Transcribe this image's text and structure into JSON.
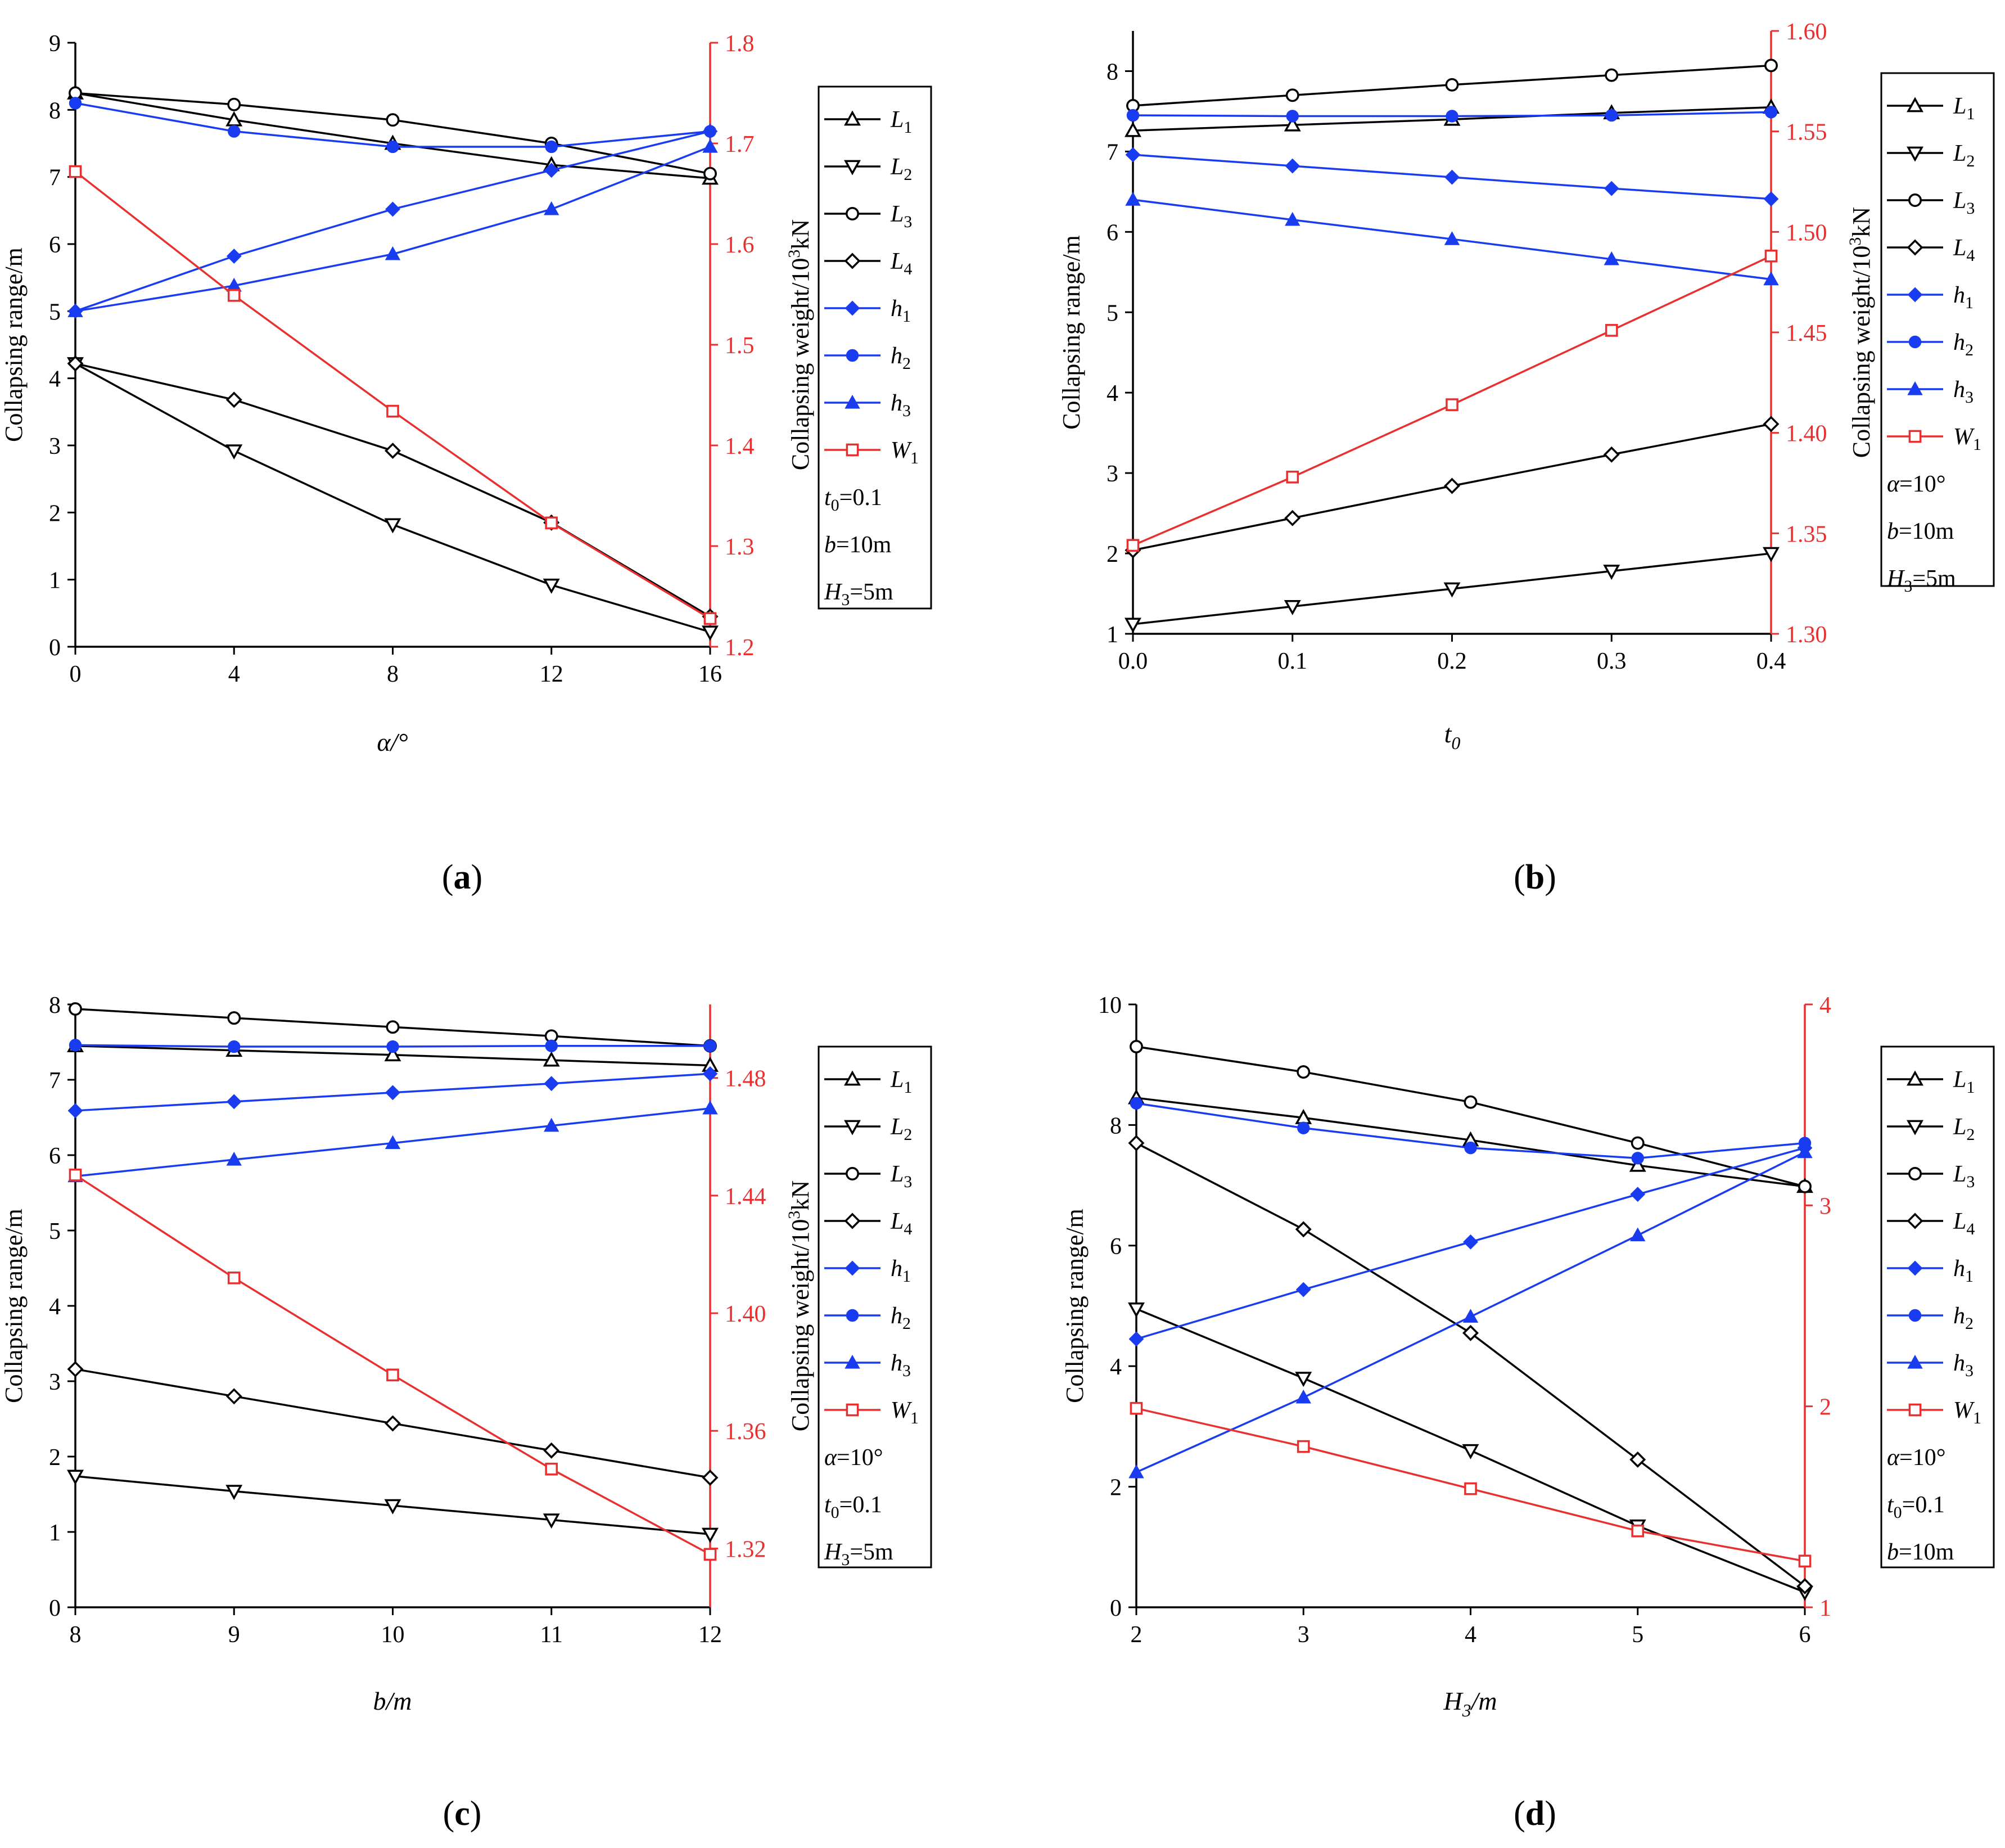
{
  "figure": {
    "left_axis_title": "Collapsing range/m",
    "right_axis_title": "Collapsing weight/10",
    "right_axis_sup": "3",
    "right_axis_suffix": "kN"
  },
  "chart_data": [
    {
      "panel": "(a)",
      "letter": "a",
      "type": "line",
      "xlabel": "α/°",
      "x": [
        0,
        4,
        8,
        12,
        16
      ],
      "x_ticks": [
        "0",
        "4",
        "8",
        "12",
        "16"
      ],
      "xlim": [
        0,
        16
      ],
      "ylabel": "Collapsing range/m",
      "ylim": [
        0,
        9
      ],
      "y_ticks": [
        "0",
        "1",
        "2",
        "3",
        "4",
        "5",
        "6",
        "7",
        "8",
        "9"
      ],
      "y2label": "Collapsing weight/10³kN",
      "y2lim": [
        1.2,
        1.8
      ],
      "y2_ticks": [
        "1.2",
        "1.3",
        "1.4",
        "1.5",
        "1.6",
        "1.7",
        "1.8"
      ],
      "series": [
        {
          "name": "L1",
          "label": "L",
          "sub": "1",
          "color": "#000000",
          "marker": "triangle-up",
          "axis": "left",
          "values": [
            8.25,
            7.85,
            7.5,
            7.18,
            6.98
          ]
        },
        {
          "name": "L2",
          "label": "L",
          "sub": "2",
          "color": "#000000",
          "marker": "triangle-down",
          "axis": "left",
          "values": [
            4.22,
            2.92,
            1.82,
            0.92,
            0.22
          ]
        },
        {
          "name": "L3",
          "label": "L",
          "sub": "3",
          "color": "#000000",
          "marker": "circle-open",
          "axis": "left",
          "values": [
            8.25,
            8.08,
            7.85,
            7.5,
            7.05
          ]
        },
        {
          "name": "L4",
          "label": "L",
          "sub": "4",
          "color": "#000000",
          "marker": "diamond-open",
          "axis": "left",
          "values": [
            4.22,
            3.68,
            2.92,
            1.85,
            0.45
          ]
        },
        {
          "name": "h1",
          "label": "h",
          "sub": "1",
          "color": "#1a3cf0",
          "marker": "diamond-filled",
          "axis": "left",
          "values": [
            5.0,
            5.82,
            6.52,
            7.1,
            7.68
          ]
        },
        {
          "name": "h2",
          "label": "h",
          "sub": "2",
          "color": "#1a3cf0",
          "marker": "circle-filled",
          "axis": "left",
          "values": [
            8.1,
            7.68,
            7.45,
            7.45,
            7.68
          ]
        },
        {
          "name": "h3",
          "label": "h",
          "sub": "3",
          "color": "#1a3cf0",
          "marker": "triangle-filled",
          "axis": "left",
          "values": [
            5.0,
            5.38,
            5.85,
            6.52,
            7.45
          ]
        },
        {
          "name": "W1",
          "label": "W",
          "sub": "1",
          "color": "#e83030",
          "marker": "square-open",
          "axis": "right",
          "values": [
            1.672,
            1.549,
            1.434,
            1.323,
            1.228
          ]
        }
      ],
      "params": [
        {
          "main": "t",
          "sub": "0",
          "rest": "=0.1"
        },
        {
          "main": "b",
          "sub": "",
          "rest": "=10m"
        },
        {
          "main": "H",
          "sub": "3",
          "rest": "=5m"
        }
      ]
    },
    {
      "panel": "(b)",
      "letter": "b",
      "type": "line",
      "xlabel": "t0",
      "xlabel_main": "t",
      "xlabel_sub": "0",
      "x": [
        0.0,
        0.1,
        0.2,
        0.3,
        0.4
      ],
      "x_ticks": [
        "0.0",
        "0.1",
        "0.2",
        "0.3",
        "0.4"
      ],
      "xlim": [
        0,
        0.4
      ],
      "ylabel": "Collapsing range/m",
      "ylim": [
        1,
        8.5
      ],
      "y_ticks": [
        "1",
        "2",
        "3",
        "4",
        "5",
        "6",
        "7",
        "8"
      ],
      "y2label": "Collapsing weight/10³kN",
      "y2lim": [
        1.3,
        1.6
      ],
      "y2_ticks": [
        "1.30",
        "1.35",
        "1.40",
        "1.45",
        "1.50",
        "1.55",
        "1.60"
      ],
      "series": [
        {
          "name": "L1",
          "label": "L",
          "sub": "1",
          "color": "#000000",
          "marker": "triangle-up",
          "axis": "left",
          "values": [
            7.26,
            7.33,
            7.4,
            7.48,
            7.55
          ]
        },
        {
          "name": "L2",
          "label": "L",
          "sub": "2",
          "color": "#000000",
          "marker": "triangle-down",
          "axis": "left",
          "values": [
            1.12,
            1.34,
            1.56,
            1.78,
            2.0
          ]
        },
        {
          "name": "L3",
          "label": "L",
          "sub": "3",
          "color": "#000000",
          "marker": "circle-open",
          "axis": "left",
          "values": [
            7.57,
            7.7,
            7.83,
            7.95,
            8.07
          ]
        },
        {
          "name": "L4",
          "label": "L",
          "sub": "4",
          "color": "#000000",
          "marker": "diamond-open",
          "axis": "left",
          "values": [
            2.04,
            2.44,
            2.84,
            3.23,
            3.61
          ]
        },
        {
          "name": "h1",
          "label": "h",
          "sub": "1",
          "color": "#1a3cf0",
          "marker": "diamond-filled",
          "axis": "left",
          "values": [
            6.96,
            6.82,
            6.68,
            6.54,
            6.41
          ]
        },
        {
          "name": "h2",
          "label": "h",
          "sub": "2",
          "color": "#1a3cf0",
          "marker": "circle-filled",
          "axis": "left",
          "values": [
            7.45,
            7.44,
            7.44,
            7.45,
            7.49
          ]
        },
        {
          "name": "h3",
          "label": "h",
          "sub": "3",
          "color": "#1a3cf0",
          "marker": "triangle-filled",
          "axis": "left",
          "values": [
            6.4,
            6.15,
            5.91,
            5.66,
            5.41
          ]
        },
        {
          "name": "W1",
          "label": "W",
          "sub": "1",
          "color": "#e83030",
          "marker": "square-open",
          "axis": "right",
          "values": [
            1.344,
            1.378,
            1.414,
            1.451,
            1.488
          ]
        }
      ],
      "params": [
        {
          "main": "α",
          "sub": "",
          "rest": "=10°"
        },
        {
          "main": "b",
          "sub": "",
          "rest": "=10m"
        },
        {
          "main": "H",
          "sub": "3",
          "rest": "=5m"
        }
      ]
    },
    {
      "panel": "(c)",
      "letter": "c",
      "type": "line",
      "xlabel": "b/m",
      "x": [
        8,
        9,
        10,
        11,
        12
      ],
      "x_ticks": [
        "8",
        "9",
        "10",
        "11",
        "12"
      ],
      "xlim": [
        8,
        12
      ],
      "ylabel": "Collapsing range/m",
      "ylim": [
        0,
        8
      ],
      "y_ticks": [
        "0",
        "1",
        "2",
        "3",
        "4",
        "5",
        "6",
        "7",
        "8"
      ],
      "y2label": "Collapsing weight/10³kN",
      "y2lim": [
        1.3,
        1.505
      ],
      "y2_ticks": [
        "1.32",
        "1.36",
        "1.40",
        "1.44",
        "1.48"
      ],
      "series": [
        {
          "name": "L1",
          "label": "L",
          "sub": "1",
          "color": "#000000",
          "marker": "triangle-up",
          "axis": "left",
          "values": [
            7.45,
            7.39,
            7.33,
            7.26,
            7.19
          ]
        },
        {
          "name": "L2",
          "label": "L",
          "sub": "2",
          "color": "#000000",
          "marker": "triangle-down",
          "axis": "left",
          "values": [
            1.74,
            1.54,
            1.35,
            1.16,
            0.97
          ]
        },
        {
          "name": "L3",
          "label": "L",
          "sub": "3",
          "color": "#000000",
          "marker": "circle-open",
          "axis": "left",
          "values": [
            7.94,
            7.82,
            7.7,
            7.58,
            7.45
          ]
        },
        {
          "name": "L4",
          "label": "L",
          "sub": "4",
          "color": "#000000",
          "marker": "diamond-open",
          "axis": "left",
          "values": [
            3.16,
            2.8,
            2.44,
            2.08,
            1.72
          ]
        },
        {
          "name": "h1",
          "label": "h",
          "sub": "1",
          "color": "#1a3cf0",
          "marker": "diamond-filled",
          "axis": "left",
          "values": [
            6.59,
            6.71,
            6.83,
            6.95,
            7.08
          ]
        },
        {
          "name": "h2",
          "label": "h",
          "sub": "2",
          "color": "#1a3cf0",
          "marker": "circle-filled",
          "axis": "left",
          "values": [
            7.46,
            7.44,
            7.44,
            7.45,
            7.45
          ]
        },
        {
          "name": "h3",
          "label": "h",
          "sub": "3",
          "color": "#1a3cf0",
          "marker": "triangle-filled",
          "axis": "left",
          "values": [
            5.72,
            5.94,
            6.16,
            6.39,
            6.62
          ]
        },
        {
          "name": "W1",
          "label": "W",
          "sub": "1",
          "color": "#e83030",
          "marker": "square-open",
          "axis": "right",
          "values": [
            1.447,
            1.412,
            1.379,
            1.347,
            1.318
          ]
        }
      ],
      "params": [
        {
          "main": "α",
          "sub": "",
          "rest": "=10°"
        },
        {
          "main": "t",
          "sub": "0",
          "rest": "=0.1"
        },
        {
          "main": "H",
          "sub": "3",
          "rest": "=5m"
        }
      ]
    },
    {
      "panel": "(d)",
      "letter": "d",
      "type": "line",
      "xlabel": "H3/m",
      "xlabel_main": "H",
      "xlabel_sub": "3",
      "xlabel_rest": "/m",
      "x": [
        2,
        3,
        4,
        5,
        6
      ],
      "x_ticks": [
        "2",
        "3",
        "4",
        "5",
        "6"
      ],
      "xlim": [
        2,
        6
      ],
      "ylabel": "Collapsing range/m",
      "ylim": [
        0,
        10
      ],
      "y_ticks": [
        "0",
        "2",
        "4",
        "6",
        "8",
        "10"
      ],
      "y2label": "Collapsing weight/10³kN",
      "y2lim": [
        1,
        4
      ],
      "y2_ticks": [
        "1",
        "2",
        "3",
        "4"
      ],
      "series": [
        {
          "name": "L1",
          "label": "L",
          "sub": "1",
          "color": "#000000",
          "marker": "triangle-up",
          "axis": "left",
          "values": [
            8.45,
            8.12,
            7.75,
            7.33,
            6.98
          ]
        },
        {
          "name": "L2",
          "label": "L",
          "sub": "2",
          "color": "#000000",
          "marker": "triangle-down",
          "axis": "left",
          "values": [
            4.95,
            3.8,
            2.6,
            1.35,
            0.25
          ]
        },
        {
          "name": "L3",
          "label": "L",
          "sub": "3",
          "color": "#000000",
          "marker": "circle-open",
          "axis": "left",
          "values": [
            9.3,
            8.88,
            8.38,
            7.7,
            6.98
          ]
        },
        {
          "name": "L4",
          "label": "L",
          "sub": "4",
          "color": "#000000",
          "marker": "diamond-open",
          "axis": "left",
          "values": [
            7.7,
            6.27,
            4.55,
            2.45,
            0.35
          ]
        },
        {
          "name": "h1",
          "label": "h",
          "sub": "1",
          "color": "#1a3cf0",
          "marker": "diamond-filled",
          "axis": "left",
          "values": [
            4.45,
            5.27,
            6.06,
            6.85,
            7.62
          ]
        },
        {
          "name": "h2",
          "label": "h",
          "sub": "2",
          "color": "#1a3cf0",
          "marker": "circle-filled",
          "axis": "left",
          "values": [
            8.36,
            7.95,
            7.62,
            7.45,
            7.7
          ]
        },
        {
          "name": "h3",
          "label": "h",
          "sub": "3",
          "color": "#1a3cf0",
          "marker": "triangle-filled",
          "axis": "left",
          "values": [
            2.24,
            3.48,
            4.82,
            6.17,
            7.55
          ]
        },
        {
          "name": "W1",
          "label": "W",
          "sub": "1",
          "color": "#e83030",
          "marker": "square-open",
          "axis": "right",
          "values": [
            1.99,
            1.8,
            1.59,
            1.38,
            1.23
          ]
        }
      ],
      "params": [
        {
          "main": "α",
          "sub": "",
          "rest": "=10°"
        },
        {
          "main": "t",
          "sub": "0",
          "rest": "=0.1"
        },
        {
          "main": "b",
          "sub": "",
          "rest": "=10m"
        }
      ]
    }
  ]
}
